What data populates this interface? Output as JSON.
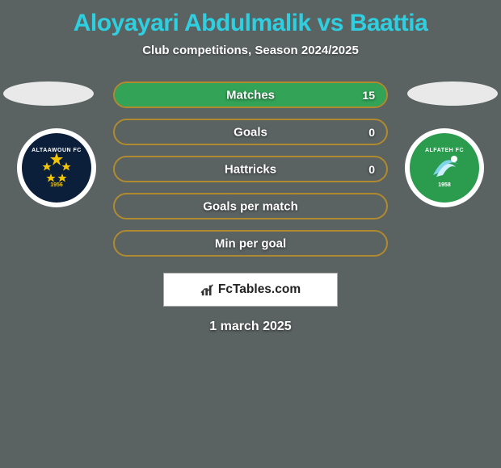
{
  "title": {
    "text": "Aloyayari Abdulmalik vs Baattia",
    "color": "#2ecfe0"
  },
  "subtitle": "Club competitions, Season 2024/2025",
  "date": "1 march 2025",
  "ellipse_color": "#e9e9e9",
  "clubs": {
    "left": {
      "name": "ALTAAWOUN FC",
      "year": "1956",
      "outer_bg": "#ffffff",
      "inner_bg": "#0c1f3a",
      "accent": "#f3c400"
    },
    "right": {
      "name": "ALFATEH FC",
      "year": "1958",
      "outer_bg": "#ffffff",
      "inner_bg": "#2b9b4e",
      "accent": "#7fd4e8"
    }
  },
  "stats": {
    "pill_border": "#b08a2e",
    "pill_bg": "#5b6362",
    "fill_color": "#33a357",
    "rows": [
      {
        "label": "Matches",
        "left_val": "",
        "right_val": "15",
        "left_pct": 0,
        "right_pct": 100
      },
      {
        "label": "Goals",
        "left_val": "",
        "right_val": "0",
        "left_pct": 0,
        "right_pct": 0
      },
      {
        "label": "Hattricks",
        "left_val": "",
        "right_val": "0",
        "left_pct": 0,
        "right_pct": 0
      },
      {
        "label": "Goals per match",
        "left_val": "",
        "right_val": "",
        "left_pct": 0,
        "right_pct": 0
      },
      {
        "label": "Min per goal",
        "left_val": "",
        "right_val": "",
        "left_pct": 0,
        "right_pct": 0
      }
    ]
  },
  "brand": {
    "text": "FcTables.com",
    "icon_color": "#333333"
  }
}
